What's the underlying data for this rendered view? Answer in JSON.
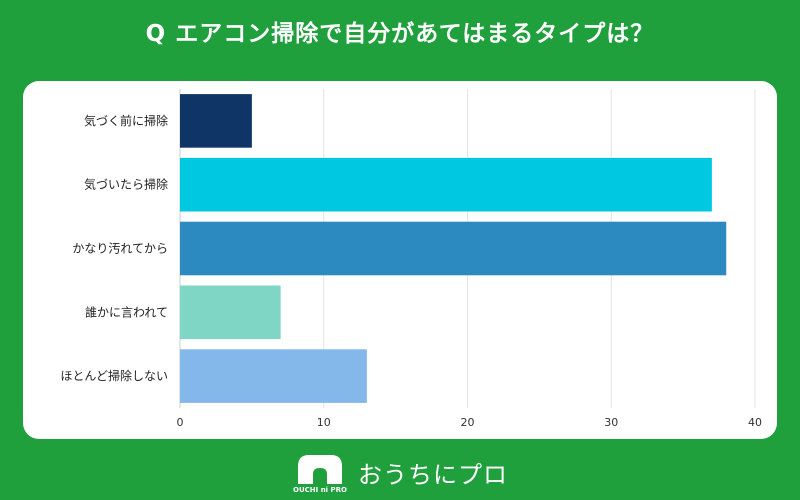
{
  "header": {
    "title": "Q エアコン掃除で自分があてはまるタイプは？"
  },
  "footer": {
    "logo_icon": "house-logo-icon",
    "logo_text": "OUCHI ni PRO",
    "brand_name": "おうちにプロ"
  },
  "colors": {
    "background": "#1fa03c",
    "card": "#ffffff",
    "grid": "#e4e4e4"
  },
  "chart_data": {
    "type": "bar",
    "orientation": "horizontal",
    "title": "",
    "xlabel": "",
    "ylabel": "",
    "categories": [
      "気づく前に掃除",
      "気づいたら掃除",
      "かなり汚れてから",
      "誰かに言われて",
      "ほとんど掃除しない"
    ],
    "values": [
      5,
      37,
      38,
      7,
      13
    ],
    "colors": [
      "#0e3566",
      "#00c8e0",
      "#2d8ac0",
      "#7fd6c4",
      "#84b8ea"
    ],
    "xlim": [
      0,
      40
    ],
    "xticks": [
      0,
      10,
      20,
      30,
      40
    ],
    "grid": true
  }
}
